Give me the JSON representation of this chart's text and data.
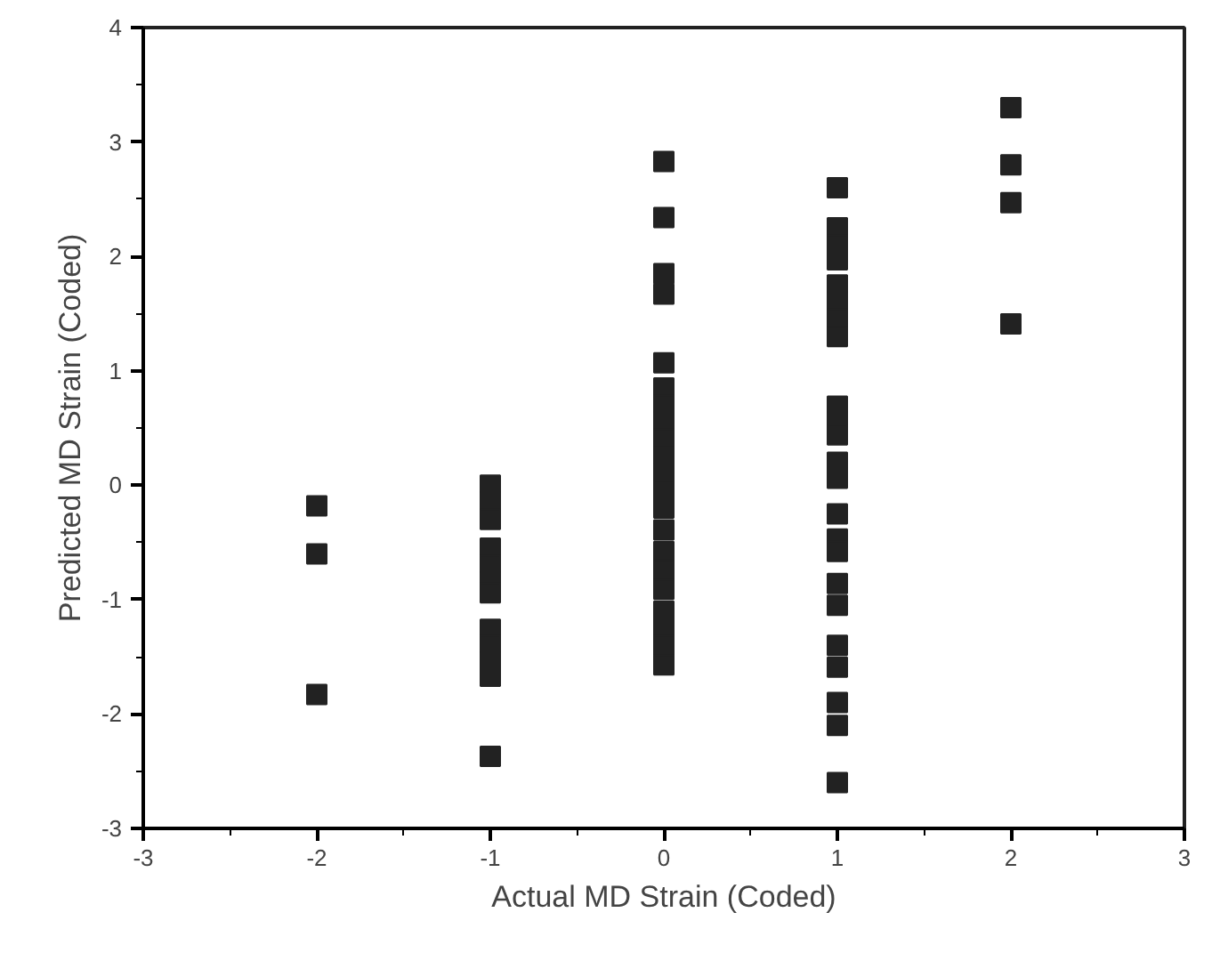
{
  "chart_data": {
    "type": "scatter",
    "xlabel": "Actual MD Strain (Coded)",
    "ylabel": "Predicted MD Strain (Coded)",
    "xlim": [
      -3,
      3
    ],
    "xticks": [
      -3,
      -2,
      -1,
      0,
      1,
      2,
      3
    ],
    "ylim": [
      -3,
      4
    ],
    "yticks": [
      -3,
      -2,
      -1,
      0,
      1,
      2,
      3,
      4
    ],
    "grid": false,
    "marker": "square",
    "series": [
      {
        "color": "#222222",
        "x": [
          -2,
          -2,
          -2,
          -1,
          -1,
          -1,
          -1,
          -1,
          -1,
          -1,
          -1,
          -1,
          -1,
          -1,
          -1,
          0,
          0,
          0,
          0,
          0,
          0,
          0,
          0,
          0,
          0,
          0,
          0,
          0,
          0,
          0,
          0,
          0,
          0,
          0,
          0,
          0,
          1,
          1,
          1,
          1,
          1,
          1,
          1,
          1,
          1,
          1,
          1,
          1,
          1,
          1,
          1,
          1,
          1,
          1,
          1,
          1,
          1,
          1,
          1,
          2,
          2,
          2,
          2
        ],
        "values": [
          -0.18,
          -0.6,
          -1.83,
          0,
          -0.15,
          -0.3,
          -0.55,
          -0.7,
          -0.85,
          -0.94,
          -1.26,
          -1.4,
          -1.55,
          -1.67,
          -2.37,
          2.83,
          2.34,
          1.85,
          1.67,
          1.07,
          0.85,
          0.7,
          0.55,
          0.4,
          0.25,
          0.1,
          -0.05,
          -0.2,
          -0.39,
          -0.58,
          -0.75,
          -0.91,
          -1.1,
          -1.25,
          -1.4,
          -1.57,
          2.6,
          2.25,
          2.1,
          1.97,
          1.75,
          1.6,
          1.45,
          1.3,
          0.69,
          0.55,
          0.44,
          0.2,
          0.06,
          -0.25,
          -0.47,
          -0.58,
          -0.86,
          -1.05,
          -1.4,
          -1.59,
          -1.9,
          -2.1,
          -2.6,
          3.3,
          2.8,
          2.47,
          1.41
        ]
      }
    ]
  }
}
